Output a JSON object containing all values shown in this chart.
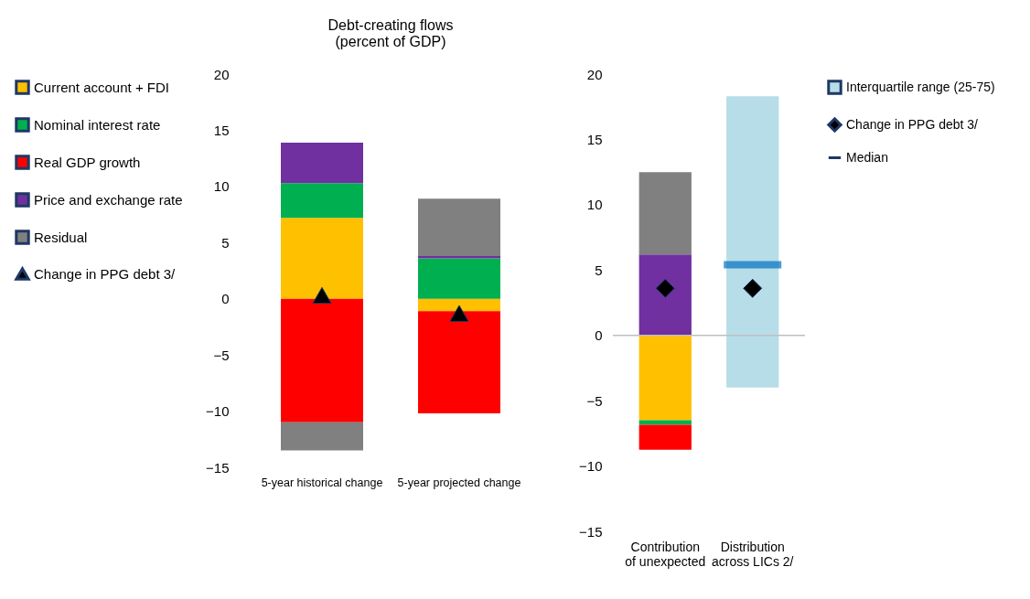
{
  "chart_data": [
    {
      "type": "bar",
      "title": "Debt-creating flows",
      "subtitle": "(percent of GDP)",
      "categories": [
        "5-year historical change",
        "5-year projected change"
      ],
      "stacked": true,
      "legend": "left",
      "grid": false,
      "ylim": [
        -15,
        20
      ],
      "yticks": [
        -15,
        -10,
        -5,
        0,
        5,
        10,
        15,
        20
      ],
      "series": [
        {
          "name": "Current account + FDI",
          "color": "#ffc000",
          "values": [
            7.2,
            -1.1
          ]
        },
        {
          "name": "Nominal interest rate",
          "color": "#00b050",
          "values": [
            3.1,
            3.6
          ]
        },
        {
          "name": "Real GDP growth",
          "color": "#ff0000",
          "values": [
            -11,
            -9.1
          ]
        },
        {
          "name": "Price and exchange rate",
          "color": "#7030a0",
          "values": [
            3.6,
            0.2
          ]
        },
        {
          "name": "Residual",
          "color": "#808080",
          "values": [
            -2.5,
            5.1
          ]
        },
        {
          "name": "Change in PPG debt 3/",
          "type": "scatter",
          "marker": "triangle",
          "color": "#000000",
          "x": [
            "5-year historical change",
            "5-year projected change"
          ],
          "values": [
            0.3,
            -1.3
          ]
        }
      ]
    },
    {
      "type": "bar",
      "categories": [
        "Contribution of unexpected",
        "Distribution across LICs 2/"
      ],
      "stacked": true,
      "legend": "right",
      "grid": false,
      "ylim": [
        -15,
        20
      ],
      "yticks": [
        -15,
        -10,
        -5,
        0,
        5,
        10,
        15,
        20
      ],
      "ref_lines": [
        {
          "axis": "y",
          "value": 0,
          "color": "#bfbfbf"
        }
      ],
      "series": [
        {
          "color": "#ffc000",
          "values": [
            -6.5,
            null
          ]
        },
        {
          "color": "#00b050",
          "values": [
            -0.35,
            null
          ]
        },
        {
          "color": "#ff0000",
          "values": [
            -1.9,
            null
          ]
        },
        {
          "color": "#7030a0",
          "values": [
            6.2,
            null
          ]
        },
        {
          "color": "#808080",
          "values": [
            6.3,
            null
          ]
        },
        {
          "name": "Interquartile range (25-75)",
          "type": "box",
          "color": "#b7dde8",
          "boxes": [
            null,
            {
              "low": -4.0,
              "q1": -4.0,
              "median": 5.4,
              "q3": 18.3,
              "high": 18.3
            }
          ]
        },
        {
          "name": "Change in PPG debt 3/",
          "type": "scatter",
          "marker": "diamond",
          "color": "#000000",
          "x": [
            "Contribution of unexpected",
            "Distribution across LICs 2/"
          ],
          "values": [
            3.6,
            3.6
          ]
        }
      ],
      "annotations": [
        "Median"
      ]
    }
  ]
}
